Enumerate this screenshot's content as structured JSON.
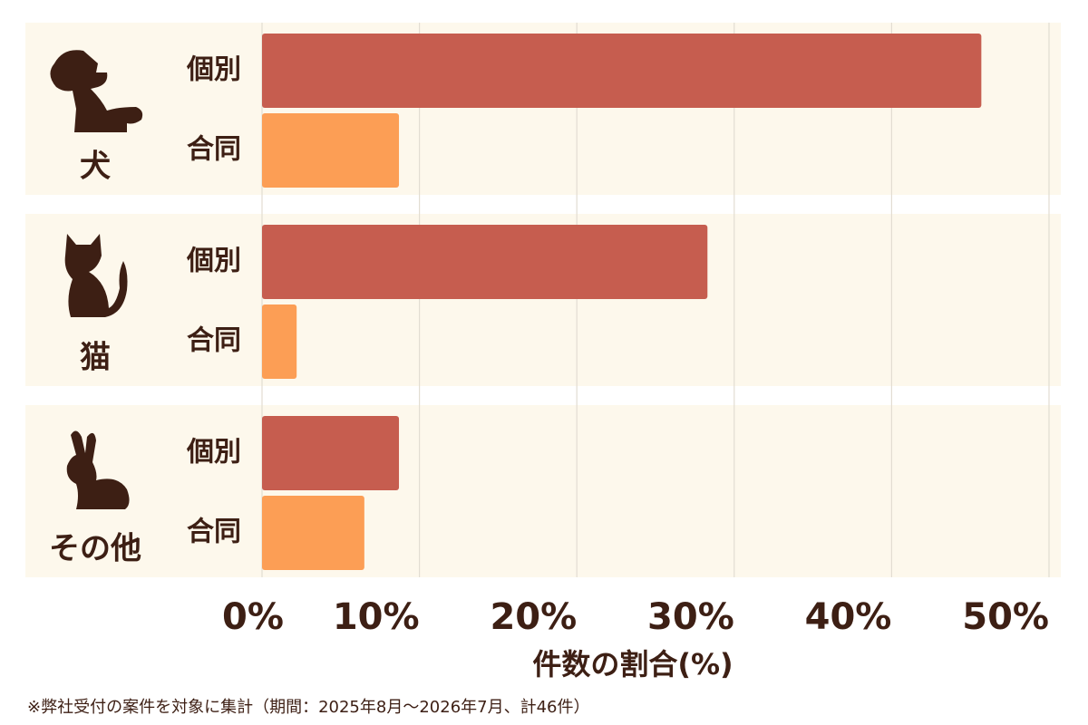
{
  "chart_data": {
    "type": "bar",
    "orientation": "horizontal",
    "categories": [
      "犬",
      "猫",
      "その他"
    ],
    "series": [
      {
        "name": "個別",
        "color": "#c65d4f",
        "values": [
          45.7,
          28.3,
          8.7
        ]
      },
      {
        "name": "合同",
        "color": "#fc9e55",
        "values": [
          8.7,
          2.2,
          6.5
        ]
      }
    ],
    "xlim": [
      0,
      50
    ],
    "xticks": [
      {
        "value": 0,
        "label": "0%"
      },
      {
        "value": 10,
        "label": "10%"
      },
      {
        "value": 20,
        "label": "20%"
      },
      {
        "value": 30,
        "label": "30%"
      },
      {
        "value": 40,
        "label": "40%"
      },
      {
        "value": 50,
        "label": "50%"
      }
    ],
    "grid": true,
    "xlabel": "件数の割合(%)",
    "footnote": "※弊社受付の案件を対象に集計（期間：2025年8月～2026年7月、計46件）"
  }
}
